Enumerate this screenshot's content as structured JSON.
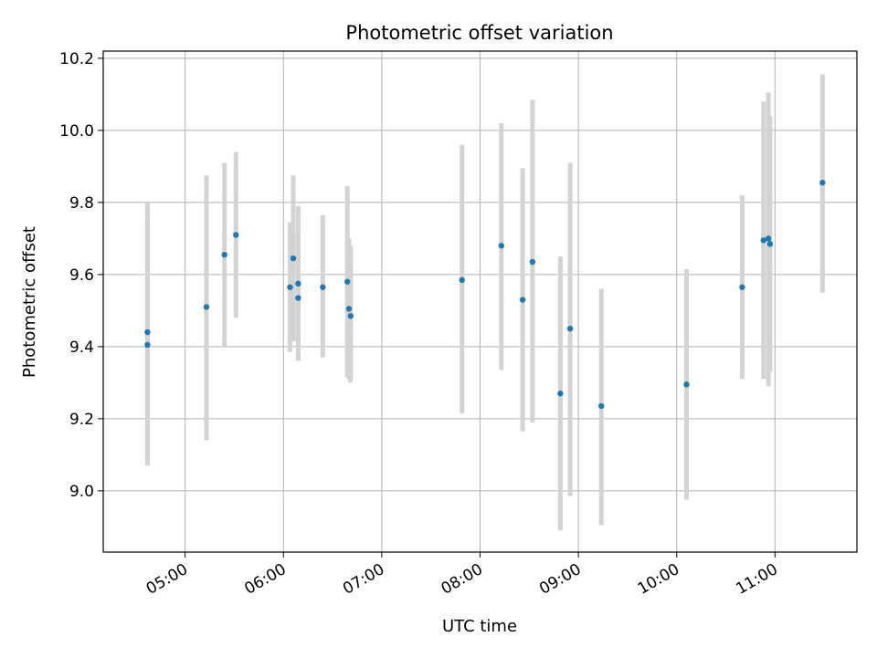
{
  "chart_data": {
    "type": "scatter",
    "title": "Photometric offset variation",
    "xlabel": "UTC time",
    "ylabel": "Photometric offset",
    "xlim": [
      "04:10",
      "11:50"
    ],
    "ylim": [
      8.83,
      10.22
    ],
    "xticks": [
      "05:00",
      "06:00",
      "07:00",
      "08:00",
      "09:00",
      "10:00",
      "11:00"
    ],
    "yticks": [
      9.0,
      9.2,
      9.4,
      9.6,
      9.8,
      10.0,
      10.2
    ],
    "grid": true,
    "marker_color": "#1f77b4",
    "errorbar_color": "#d3d3d3",
    "points": [
      {
        "t": "04:37",
        "y": 9.44,
        "lo": 9.08,
        "hi": 9.8
      },
      {
        "t": "04:37",
        "y": 9.405,
        "lo": 9.07,
        "hi": 9.74
      },
      {
        "t": "05:13",
        "y": 9.51,
        "lo": 9.14,
        "hi": 9.875
      },
      {
        "t": "05:24",
        "y": 9.655,
        "lo": 9.4,
        "hi": 9.91
      },
      {
        "t": "05:31",
        "y": 9.71,
        "lo": 9.48,
        "hi": 9.94
      },
      {
        "t": "06:04",
        "y": 9.565,
        "lo": 9.385,
        "hi": 9.745
      },
      {
        "t": "06:06",
        "y": 9.645,
        "lo": 9.415,
        "hi": 9.875
      },
      {
        "t": "06:09",
        "y": 9.575,
        "lo": 9.365,
        "hi": 9.79
      },
      {
        "t": "06:09",
        "y": 9.535,
        "lo": 9.36,
        "hi": 9.71
      },
      {
        "t": "06:24",
        "y": 9.565,
        "lo": 9.37,
        "hi": 9.765
      },
      {
        "t": "06:39",
        "y": 9.58,
        "lo": 9.315,
        "hi": 9.845
      },
      {
        "t": "06:40",
        "y": 9.505,
        "lo": 9.31,
        "hi": 9.7
      },
      {
        "t": "06:41",
        "y": 9.485,
        "lo": 9.3,
        "hi": 9.68
      },
      {
        "t": "07:49",
        "y": 9.585,
        "lo": 9.215,
        "hi": 9.96
      },
      {
        "t": "08:13",
        "y": 9.68,
        "lo": 9.335,
        "hi": 10.02
      },
      {
        "t": "08:26",
        "y": 9.53,
        "lo": 9.165,
        "hi": 9.895
      },
      {
        "t": "08:32",
        "y": 9.635,
        "lo": 9.19,
        "hi": 10.085
      },
      {
        "t": "08:49",
        "y": 9.27,
        "lo": 8.89,
        "hi": 9.65
      },
      {
        "t": "08:55",
        "y": 9.45,
        "lo": 8.985,
        "hi": 9.91
      },
      {
        "t": "09:14",
        "y": 9.235,
        "lo": 8.905,
        "hi": 9.56
      },
      {
        "t": "10:06",
        "y": 9.295,
        "lo": 8.975,
        "hi": 9.615
      },
      {
        "t": "10:40",
        "y": 9.565,
        "lo": 9.31,
        "hi": 9.82
      },
      {
        "t": "10:53",
        "y": 9.695,
        "lo": 9.31,
        "hi": 10.08
      },
      {
        "t": "10:56",
        "y": 9.7,
        "lo": 9.29,
        "hi": 10.105
      },
      {
        "t": "10:57",
        "y": 9.685,
        "lo": 9.33,
        "hi": 10.04
      },
      {
        "t": "11:29",
        "y": 9.855,
        "lo": 9.55,
        "hi": 10.155
      }
    ]
  }
}
